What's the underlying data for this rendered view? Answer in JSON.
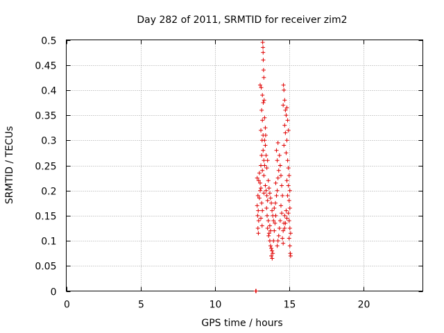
{
  "chart_data": {
    "type": "scatter",
    "title": "Day 282 of 2011, SRMTID for receiver zim2",
    "xlabel": "GPS time / hours",
    "ylabel": "SRMTID / TECUs",
    "xlim": [
      0,
      24
    ],
    "ylim": [
      0,
      0.5
    ],
    "x_ticks": [
      0,
      5,
      10,
      15,
      20
    ],
    "x_tick_labels": [
      "0",
      "5",
      "10",
      "15",
      "20"
    ],
    "y_ticks": [
      0,
      0.05,
      0.1,
      0.15,
      0.2,
      0.25,
      0.3,
      0.35,
      0.4,
      0.45,
      0.5
    ],
    "y_tick_labels": [
      "0",
      "0.05",
      "0.1",
      "0.15",
      "0.2",
      "0.25",
      "0.3",
      "0.35",
      "0.4",
      "0.45",
      "0.5"
    ],
    "grid": true,
    "marker": "+",
    "color": "#e00000",
    "series": [
      {
        "name": "SRMTID",
        "points": [
          [
            12.75,
            0.0
          ],
          [
            12.78,
            0.0
          ],
          [
            13.22,
            0.495
          ],
          [
            13.24,
            0.485
          ],
          [
            13.25,
            0.475
          ],
          [
            13.26,
            0.46
          ],
          [
            13.28,
            0.44
          ],
          [
            13.3,
            0.425
          ],
          [
            13.05,
            0.41
          ],
          [
            13.12,
            0.405
          ],
          [
            13.2,
            0.39
          ],
          [
            13.26,
            0.375
          ],
          [
            13.32,
            0.38
          ],
          [
            13.15,
            0.36
          ],
          [
            13.2,
            0.34
          ],
          [
            13.35,
            0.345
          ],
          [
            13.4,
            0.325
          ],
          [
            13.42,
            0.31
          ],
          [
            13.1,
            0.32
          ],
          [
            13.18,
            0.3
          ],
          [
            13.25,
            0.28
          ],
          [
            13.15,
            0.27
          ],
          [
            13.3,
            0.26
          ],
          [
            13.35,
            0.25
          ],
          [
            13.2,
            0.24
          ],
          [
            12.85,
            0.225
          ],
          [
            12.95,
            0.22
          ],
          [
            13.05,
            0.215
          ],
          [
            13.1,
            0.205
          ],
          [
            12.9,
            0.19
          ],
          [
            13.0,
            0.185
          ],
          [
            12.85,
            0.17
          ],
          [
            12.92,
            0.16
          ],
          [
            12.88,
            0.15
          ],
          [
            12.95,
            0.14
          ],
          [
            12.9,
            0.125
          ],
          [
            12.93,
            0.115
          ],
          [
            13.3,
            0.23
          ],
          [
            13.4,
            0.21
          ],
          [
            13.45,
            0.2
          ],
          [
            13.5,
            0.19
          ],
          [
            13.55,
            0.18
          ],
          [
            13.48,
            0.165
          ],
          [
            13.52,
            0.15
          ],
          [
            13.6,
            0.14
          ],
          [
            13.55,
            0.125
          ],
          [
            13.62,
            0.11
          ],
          [
            13.7,
            0.1
          ],
          [
            13.65,
            0.115
          ],
          [
            13.75,
            0.09
          ],
          [
            13.8,
            0.085
          ],
          [
            13.85,
            0.08
          ],
          [
            13.9,
            0.075
          ],
          [
            13.8,
            0.07
          ],
          [
            13.86,
            0.065
          ],
          [
            13.95,
            0.1
          ],
          [
            14.0,
            0.12
          ],
          [
            14.05,
            0.135
          ],
          [
            14.1,
            0.15
          ],
          [
            14.0,
            0.165
          ],
          [
            14.08,
            0.175
          ],
          [
            14.15,
            0.19
          ],
          [
            14.2,
            0.2
          ],
          [
            14.1,
            0.215
          ],
          [
            14.25,
            0.225
          ],
          [
            14.3,
            0.24
          ],
          [
            14.2,
            0.26
          ],
          [
            14.15,
            0.28
          ],
          [
            14.25,
            0.295
          ],
          [
            14.35,
            0.27
          ],
          [
            14.4,
            0.25
          ],
          [
            14.45,
            0.23
          ],
          [
            14.5,
            0.21
          ],
          [
            14.55,
            0.19
          ],
          [
            14.45,
            0.17
          ],
          [
            14.5,
            0.155
          ],
          [
            14.4,
            0.14
          ],
          [
            14.35,
            0.125
          ],
          [
            14.3,
            0.11
          ],
          [
            14.25,
            0.1
          ],
          [
            14.2,
            0.09
          ],
          [
            14.6,
            0.12
          ],
          [
            14.65,
            0.135
          ],
          [
            14.7,
            0.15
          ],
          [
            14.55,
            0.105
          ],
          [
            14.62,
            0.41
          ],
          [
            14.65,
            0.4
          ],
          [
            14.7,
            0.38
          ],
          [
            14.6,
            0.37
          ],
          [
            14.75,
            0.36
          ],
          [
            14.85,
            0.365
          ],
          [
            14.8,
            0.35
          ],
          [
            14.9,
            0.34
          ],
          [
            14.7,
            0.33
          ],
          [
            14.75,
            0.315
          ],
          [
            14.85,
            0.3
          ],
          [
            14.95,
            0.32
          ],
          [
            14.65,
            0.29
          ],
          [
            14.8,
            0.275
          ],
          [
            14.9,
            0.26
          ],
          [
            14.95,
            0.245
          ],
          [
            15.0,
            0.23
          ],
          [
            14.85,
            0.22
          ],
          [
            14.95,
            0.21
          ],
          [
            15.05,
            0.2
          ],
          [
            14.9,
            0.19
          ],
          [
            15.0,
            0.18
          ],
          [
            15.05,
            0.165
          ],
          [
            14.95,
            0.155
          ],
          [
            15.0,
            0.14
          ],
          [
            15.05,
            0.125
          ],
          [
            15.1,
            0.115
          ],
          [
            15.0,
            0.105
          ],
          [
            15.05,
            0.09
          ],
          [
            15.08,
            0.075
          ],
          [
            15.1,
            0.07
          ],
          [
            14.8,
            0.16
          ],
          [
            14.85,
            0.145
          ],
          [
            14.75,
            0.135
          ],
          [
            14.7,
            0.125
          ],
          [
            14.6,
            0.095
          ],
          [
            13.6,
            0.22
          ],
          [
            13.65,
            0.205
          ],
          [
            13.7,
            0.195
          ],
          [
            13.75,
            0.185
          ],
          [
            13.8,
            0.175
          ],
          [
            13.85,
            0.16
          ],
          [
            13.9,
            0.15
          ],
          [
            13.95,
            0.14
          ],
          [
            13.7,
            0.13
          ],
          [
            13.75,
            0.12
          ],
          [
            13.55,
            0.26
          ],
          [
            13.5,
            0.245
          ],
          [
            13.45,
            0.27
          ],
          [
            13.4,
            0.29
          ],
          [
            13.35,
            0.3
          ],
          [
            13.25,
            0.31
          ],
          [
            13.3,
            0.195
          ],
          [
            13.15,
            0.175
          ],
          [
            13.2,
            0.16
          ],
          [
            13.1,
            0.145
          ],
          [
            13.18,
            0.13
          ],
          [
            13.05,
            0.2
          ],
          [
            13.0,
            0.235
          ],
          [
            13.1,
            0.25
          ]
        ]
      }
    ]
  }
}
